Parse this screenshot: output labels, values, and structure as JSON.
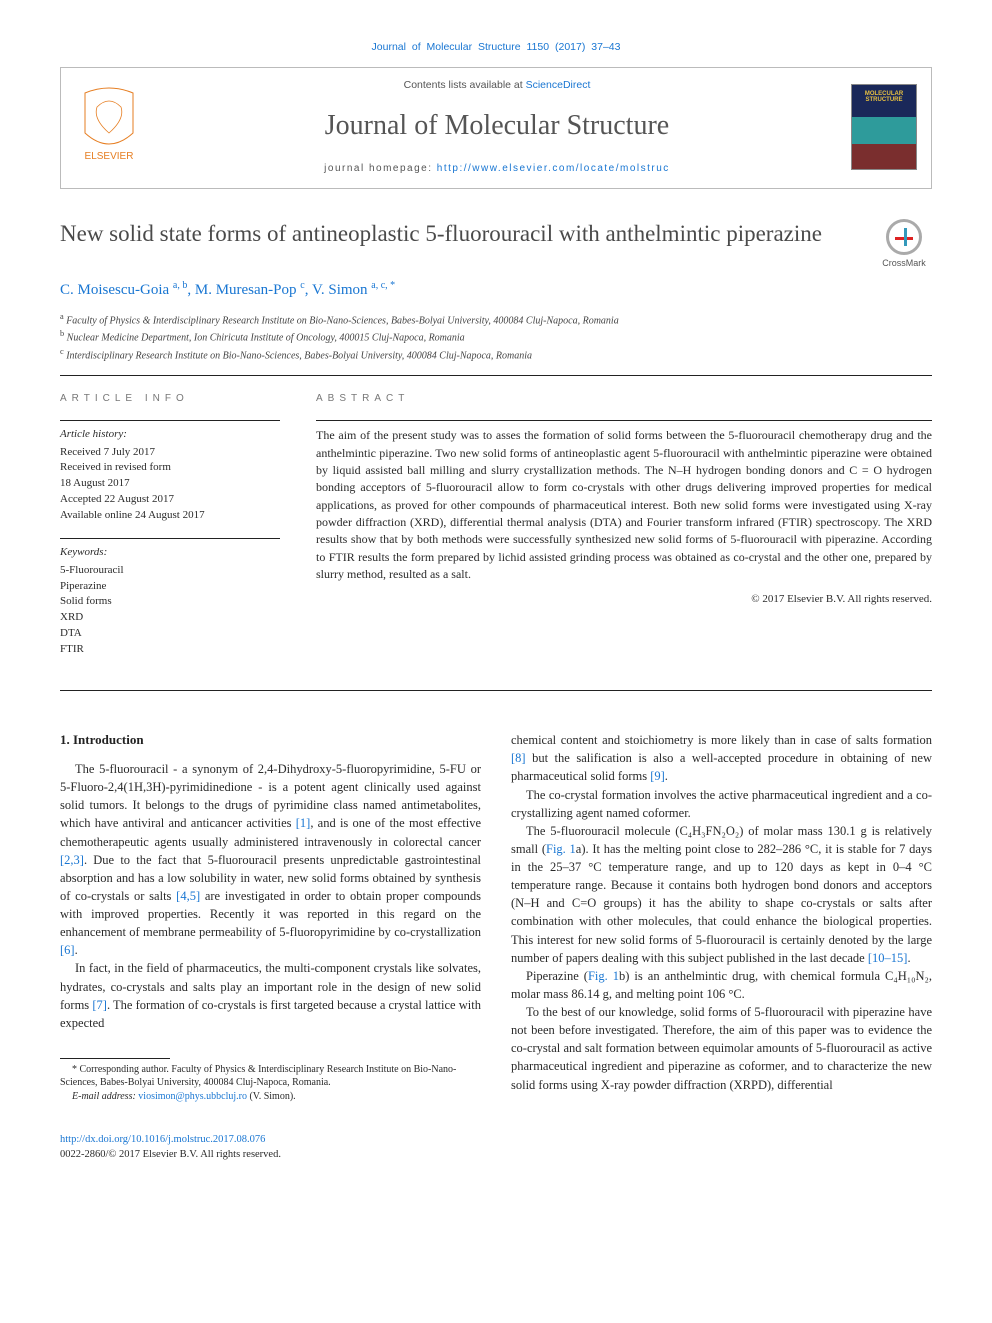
{
  "citation": "Journal of Molecular Structure 1150 (2017) 37–43",
  "header": {
    "contents_prefix": "Contents lists available at ",
    "contents_link": "ScienceDirect",
    "journal_title": "Journal of Molecular Structure",
    "homepage_prefix": "journal homepage: ",
    "homepage_url": "http://www.elsevier.com/locate/molstruc",
    "elsevier_label": "ELSEVIER"
  },
  "article": {
    "title": "New solid state forms of antineoplastic 5-fluorouracil with anthelmintic piperazine",
    "crossmark": "CrossMark"
  },
  "authors_html": "C. Moisescu-Goia <sup>a, b</sup>, M. Muresan-Pop <sup>c</sup>, V. Simon <sup>a, c, *</sup>",
  "affiliations": [
    "a Faculty of Physics & Interdisciplinary Research Institute on Bio-Nano-Sciences, Babes-Bolyai University, 400084 Cluj-Napoca, Romania",
    "b Nuclear Medicine Department, Ion Chiricuta Institute of Oncology, 400015 Cluj-Napoca, Romania",
    "c Interdisciplinary Research Institute on Bio-Nano-Sciences, Babes-Bolyai University, 400084 Cluj-Napoca, Romania"
  ],
  "info": {
    "heading": "ARTICLE INFO",
    "history_label": "Article history:",
    "history": [
      "Received 7 July 2017",
      "Received in revised form",
      "18 August 2017",
      "Accepted 22 August 2017",
      "Available online 24 August 2017"
    ],
    "keywords_label": "Keywords:",
    "keywords": [
      "5-Fluorouracil",
      "Piperazine",
      "Solid forms",
      "XRD",
      "DTA",
      "FTIR"
    ]
  },
  "abstract": {
    "heading": "ABSTRACT",
    "text": "The aim of the present study was to asses the formation of solid forms between the 5-fluorouracil chemotherapy drug and the anthelmintic piperazine. Two new solid forms of antineoplastic agent 5-fluorouracil with anthelmintic piperazine were obtained by liquid assisted ball milling and slurry crystallization methods. The N–H hydrogen bonding donors and C = O hydrogen bonding acceptors of 5-fluorouracil allow to form co-crystals with other drugs delivering improved properties for medical applications, as proved for other compounds of pharmaceutical interest. Both new solid forms were investigated using X-ray powder diffraction (XRD), differential thermal analysis (DTA) and Fourier transform infrared (FTIR) spectroscopy. The XRD results show that by both methods were successfully synthesized new solid forms of 5-fluorouracil with piperazine. According to FTIR results the form prepared by lichid assisted grinding process was obtained as co-crystal and the other one, prepared by slurry method, resulted as a salt.",
    "copyright": "© 2017 Elsevier B.V. All rights reserved."
  },
  "body": {
    "section_title": "1. Introduction",
    "p1_a": "The 5-fluorouracil - a synonym of 2,4-Dihydroxy-5-fluoropyrimidine, 5-FU or 5-Fluoro-2,4(1H,3H)-pyrimidinedione - is a potent agent clinically used against solid tumors. It belongs to the drugs of pyrimidine class named antimetabolites, which have antiviral and anticancer activities ",
    "p1_ref1": "[1]",
    "p1_b": ", and is one of the most effective chemotherapeutic agents usually administered intravenously in colorectal cancer ",
    "p1_ref2": "[2,3]",
    "p1_c": ". Due to the fact that 5-fluorouracil presents unpredictable gastrointestinal absorption and has a low solubility in water, new solid forms obtained by synthesis of co-crystals or salts ",
    "p1_ref3": "[4,5]",
    "p1_d": " are investigated in order to obtain proper compounds with improved properties. Recently it was reported in this regard on the enhancement of membrane permeability of 5-fluoropyrimidine by co-crystallization ",
    "p1_ref4": "[6]",
    "p1_e": ".",
    "p2_a": "In fact, in the field of pharmaceutics, the multi-component crystals like solvates, hydrates, co-crystals and salts play an important role in the design of new solid forms ",
    "p2_ref1": "[7]",
    "p2_b": ". The formation of co-crystals is first targeted because a crystal lattice with expected ",
    "p2_c": "chemical content and stoichiometry is more likely than in case of salts formation ",
    "p2_ref2": "[8]",
    "p2_d": " but the salification is also a well-accepted procedure in obtaining of new pharmaceutical solid forms ",
    "p2_ref3": "[9]",
    "p2_e": ".",
    "p3": "The co-crystal formation involves the active pharmaceutical ingredient and a co-crystallizing agent named coformer.",
    "p4_a": "The 5-fluorouracil molecule (C₄H₃FN₂O₂) of molar mass 130.1 g is relatively small (",
    "p4_ref1": "Fig. 1",
    "p4_b": "a). It has the melting point close to 282–286 °C, it is stable for 7 days in the 25–37 °C temperature range, and up to 120 days as kept in 0–4 °C temperature range. Because it contains both hydrogen bond donors and acceptors (N–H and C=O groups) it has the ability to shape co-crystals or salts after combination with other molecules, that could enhance the biological properties. This interest for new solid forms of 5-fluorouracil is certainly denoted by the large number of papers dealing with this subject published in the last decade ",
    "p4_ref2": "[10–15]",
    "p4_c": ".",
    "p5_a": "Piperazine (",
    "p5_ref1": "Fig. 1",
    "p5_b": "b) is an anthelmintic drug, with chemical formula C₄H₁₀N₂, molar mass 86.14 g, and melting point 106 °C.",
    "p6": "To the best of our knowledge, solid forms of 5-fluorouracil with piperazine have not been before investigated. Therefore, the aim of this paper was to evidence the co-crystal and salt formation between equimolar amounts of 5-fluorouracil as active pharmaceutical ingredient and piperazine as coformer, and to characterize the new solid forms using X-ray powder diffraction (XRPD), differential"
  },
  "footnote": {
    "corr": "* Corresponding author. Faculty of Physics & Interdisciplinary Research Institute on Bio-Nano-Sciences, Babes-Bolyai University, 400084 Cluj-Napoca, Romania.",
    "email_label": "E-mail address: ",
    "email": "viosimon@phys.ubbcluj.ro",
    "email_who": " (V. Simon)."
  },
  "footer": {
    "doi": "http://dx.doi.org/10.1016/j.molstruc.2017.08.076",
    "issn": "0022-2860/© 2017 Elsevier B.V. All rights reserved."
  },
  "colors": {
    "link": "#1976d2",
    "text": "#2a2a2a",
    "muted": "#555",
    "rule": "#222222"
  }
}
